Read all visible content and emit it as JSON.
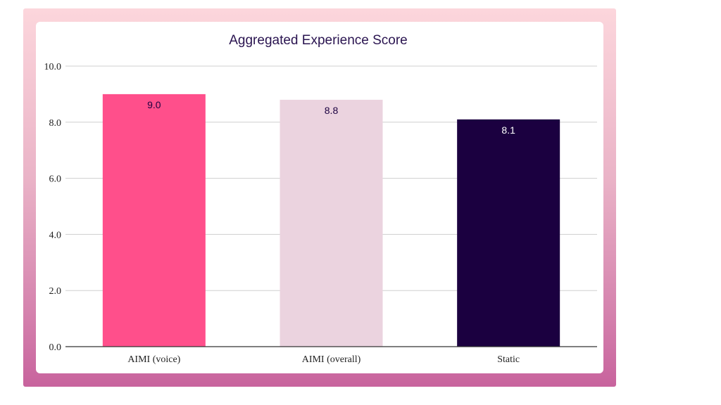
{
  "chart_data": {
    "type": "bar",
    "title": "Aggregated Experience Score",
    "categories": [
      "AIMI (voice)",
      "AIMI (overall)",
      "Static"
    ],
    "values": [
      9.0,
      8.8,
      8.1
    ],
    "data_labels": [
      "9.0",
      "8.8",
      "8.1"
    ],
    "colors": [
      "#ff4f8b",
      "#ebd3df",
      "#1b0040"
    ],
    "label_colors": [
      "#1b0040",
      "#1b0040",
      "#ffffff"
    ],
    "yticks": [
      "0.0",
      "2.0",
      "4.0",
      "6.0",
      "8.0",
      "10.0"
    ],
    "ytick_values": [
      0,
      2,
      4,
      6,
      8,
      10
    ],
    "ylim": [
      0,
      10
    ],
    "xlabel": "",
    "ylabel": "",
    "grid": true,
    "legend": "none"
  }
}
